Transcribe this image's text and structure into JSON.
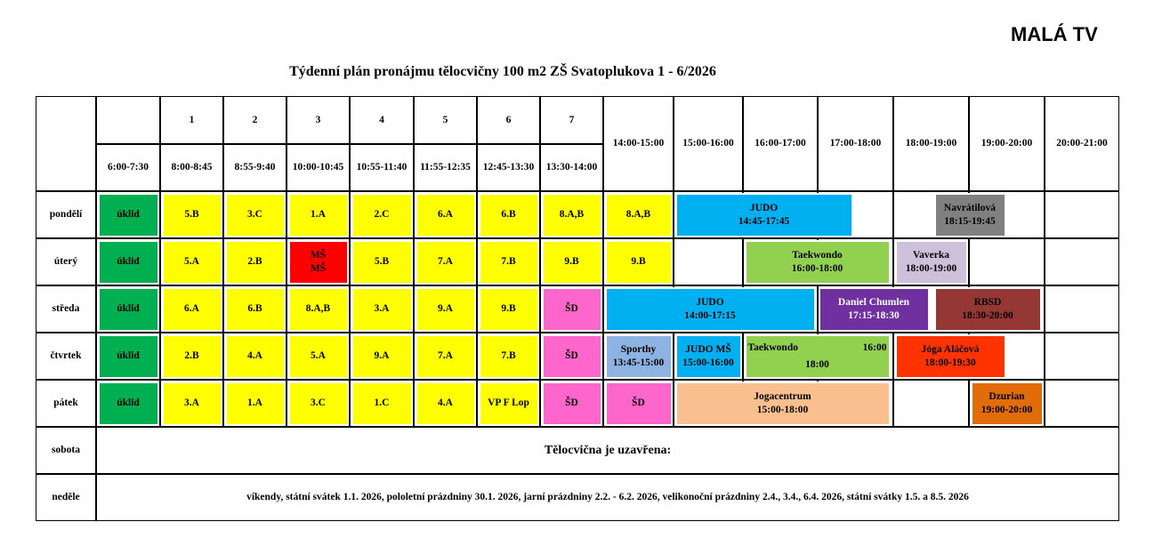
{
  "header": {
    "brand": "MALÁ TV",
    "title": "Týdenní plán pronájmu tělocvičny 100 m2 ZŠ Svatoplukova 1 - 6/2026"
  },
  "table": {
    "lessons": [
      "1",
      "2",
      "3",
      "4",
      "5",
      "6",
      "7"
    ],
    "times": [
      "6:00-7:30",
      "8:00-8:45",
      "8:55-9:40",
      "10:00-10:45",
      "10:55-11:40",
      "11:55-12:35",
      "12:45-13:30",
      "13:30-14:00",
      "14:00-15:00",
      "15:00-16:00",
      "16:00-17:00",
      "17:00-18:00",
      "18:00-19:00",
      "19:00-20:00",
      "20:00-21:00"
    ],
    "days": [
      {
        "day": "pondělí",
        "cells": [
          [
            "úklid"
          ],
          [
            "5.B"
          ],
          [
            "3.C"
          ],
          [
            "1.A"
          ],
          [
            "2.C"
          ],
          [
            "6.A"
          ],
          [
            "6.B"
          ],
          [
            "8.A,B"
          ],
          [
            "8.A,B"
          ],
          [
            "JUDO",
            "14:45-17:45"
          ],
          [
            "Navrátilová",
            "18:15-19:45"
          ]
        ]
      },
      {
        "day": "úterý",
        "cells": [
          [
            "úklid"
          ],
          [
            "5.A"
          ],
          [
            "2.B"
          ],
          [
            "MŠ",
            "MŠ"
          ],
          [
            "5.B"
          ],
          [
            "7.A"
          ],
          [
            "7.B"
          ],
          [
            "9.B"
          ],
          [
            "9.B"
          ],
          [
            "Taekwondo",
            "16:00-18:00"
          ],
          [
            "Vaverka",
            "18:00-19:00"
          ]
        ]
      },
      {
        "day": "středa",
        "cells": [
          [
            "úklid"
          ],
          [
            "6.A"
          ],
          [
            "6.B"
          ],
          [
            "8.A,B"
          ],
          [
            "3.A"
          ],
          [
            "9.A"
          ],
          [
            "9.B"
          ],
          [
            "ŠD"
          ],
          [
            "JUDO",
            "14:00-17:15"
          ],
          [
            "Daniel Chumlen",
            "17:15-18:30"
          ],
          [
            "RBSD",
            "18:30-20:00"
          ]
        ]
      },
      {
        "day": "čtvrtek",
        "cells": [
          [
            "úklid"
          ],
          [
            "2.B"
          ],
          [
            "4.A"
          ],
          [
            "5.A"
          ],
          [
            "9.A"
          ],
          [
            "7.A"
          ],
          [
            "7.B"
          ],
          [
            "ŠD"
          ],
          [
            "Sporthy",
            "13:45-15:00"
          ],
          [
            "JUDO MŠ",
            "15:00-16:00"
          ],
          [
            "Taekwondo",
            "16:00",
            "18:00"
          ],
          [
            "Jóga Aláčová",
            "18:00-19:30"
          ]
        ]
      },
      {
        "day": "pátek",
        "cells": [
          [
            "úklid"
          ],
          [
            "3.A"
          ],
          [
            "1.A"
          ],
          [
            "3.C"
          ],
          [
            "1.C"
          ],
          [
            "4.A"
          ],
          [
            "VP F Lop"
          ],
          [
            "ŠD"
          ],
          [
            "ŠD"
          ],
          [
            "Jogacentrum",
            "15:00-18:00"
          ],
          [
            "Dzurian",
            "19:00-20:00"
          ]
        ]
      }
    ],
    "weekend": [
      {
        "day": "sobota",
        "text": "Tělocvična je uzavřena:"
      },
      {
        "day": "neděle",
        "text": "víkendy, státní svátek 1.1. 2026, pololetní prázdniny 30.1. 2026, jarní prázdniny 2.2. - 6.2. 2026, velikonoční prázdniny 2.4., 3.4., 6.4. 2026, státní svátky 1.5. a 8.5. 2026"
      }
    ]
  }
}
